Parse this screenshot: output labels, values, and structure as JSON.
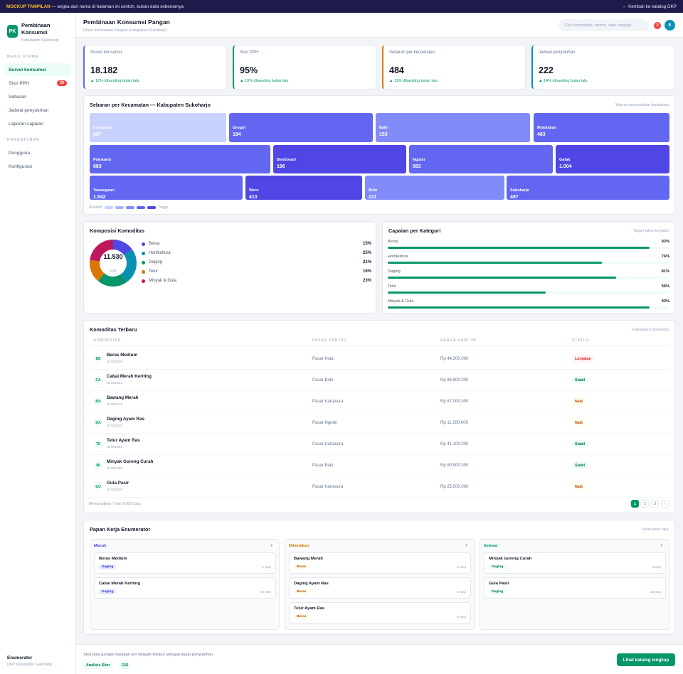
{
  "banner": {
    "tag": "MOCKUP TAMPILAN",
    "text": "— angka dan nama di halaman ini contoh, bukan data sebenarnya",
    "back": "← Kembali ke katalog DKP"
  },
  "sidebar": {
    "logo": "PK",
    "title": "Pembinaan Konsumsi",
    "subtitle": "Kabupaten Sukoharjo",
    "section_main": "MENU UTAMA",
    "items": [
      {
        "label": "Survei konsumsi"
      },
      {
        "label": "Skor PPH",
        "badge": "29"
      },
      {
        "label": "Sebaran"
      },
      {
        "label": "Jadwal penyuluhan"
      },
      {
        "label": "Laporan capaian"
      }
    ],
    "section_settings": "PENGATURAN",
    "settings": [
      {
        "label": "Pengguna"
      },
      {
        "label": "Konfigurasi"
      }
    ],
    "user_role": "Enumerator",
    "user_org": "DKP Kabupaten Sukoharjo"
  },
  "header": {
    "title": "Pembinaan Konsumsi Pangan",
    "subtitle": "Dinas Ketahanan Pangan Kabupaten Sukoharjo",
    "search_placeholder": "Cari komoditas, nomor, atau tanggal...",
    "notif_count": "2",
    "avatar": "E"
  },
  "kpis": [
    {
      "label": "Survei konsumsi",
      "value": "18.182",
      "trend": "▲ 12% dibanding bulan lalu",
      "accent": "#6366f1"
    },
    {
      "label": "Skor PPH",
      "value": "95%",
      "trend": "▲ 10% dibanding bulan lalu",
      "accent": "#059669"
    },
    {
      "label": "Sebaran per kecamatan",
      "value": "484",
      "trend": "▲ 11% dibanding bulan lalu",
      "accent": "#d97706"
    },
    {
      "label": "Jadwal penyuluhan",
      "value": "222",
      "trend": "▲ 14% dibanding bulan lalu",
      "accent": "#0891b2"
    }
  ],
  "map": {
    "title": "Sebaran per Kecamatan — Kabupaten Sukoharjo",
    "note": "Warna menunjukkan kepadatan",
    "legend_low": "Rendah",
    "legend_high": "Tinggi",
    "scale_colors": [
      "#c7d2fe",
      "#a5b4fc",
      "#818cf8",
      "#6366f1",
      "#4f46e5"
    ],
    "rows": [
      [
        {
          "name": "Kartasura",
          "value": "987",
          "level": 0
        },
        {
          "name": "Grogol",
          "value": "194",
          "level": 3
        },
        {
          "name": "Baki",
          "value": "153",
          "level": 2
        },
        {
          "name": "Mojolaban",
          "value": "483",
          "level": 3
        }
      ],
      [
        {
          "name": "Polokarto",
          "value": "883",
          "level": 3
        },
        {
          "name": "Bendosari",
          "value": "196",
          "level": 4
        },
        {
          "name": "Nguter",
          "value": "583",
          "level": 3
        },
        {
          "name": "Gatak",
          "value": "1.004",
          "level": 4
        }
      ],
      [
        {
          "name": "Tawangsari",
          "value": "1.542",
          "level": 3
        },
        {
          "name": "Weru",
          "value": "410",
          "level": 4
        },
        {
          "name": "Bulu",
          "value": "211",
          "level": 2
        },
        {
          "name": "Sukoharjo",
          "value": "497",
          "level": 3
        }
      ]
    ]
  },
  "composition": {
    "title": "Komposisi Komoditas",
    "total": "11.530",
    "total_label": "total",
    "items": [
      {
        "name": "Beras",
        "pct": "15%",
        "value": 15,
        "color": "#4f46e5"
      },
      {
        "name": "Hortikultura",
        "pct": "25%",
        "value": 25,
        "color": "#0891b2"
      },
      {
        "name": "Daging",
        "pct": "21%",
        "value": 21,
        "color": "#059669"
      },
      {
        "name": "Telur",
        "pct": "16%",
        "value": 16,
        "color": "#d97706"
      },
      {
        "name": "Minyak & Gula",
        "pct": "23%",
        "value": 23,
        "color": "#be185d"
      }
    ]
  },
  "achievement": {
    "title": "Capaian per Kategori",
    "note": "Target tahun berjalan",
    "items": [
      {
        "name": "Beras",
        "pct": "93%",
        "value": 0.93
      },
      {
        "name": "Hortikultura",
        "pct": "76%",
        "value": 0.76
      },
      {
        "name": "Daging",
        "pct": "81%",
        "value": 0.81
      },
      {
        "name": "Telur",
        "pct": "56%",
        "value": 0.56
      },
      {
        "name": "Minyak & Gula",
        "pct": "93%",
        "value": 0.93
      }
    ]
  },
  "table": {
    "title": "Komoditas Terbaru",
    "note": "Kabupaten Sukoharjo",
    "headers": [
      "KOMODITAS",
      "PASAR PANTAU",
      "HARGA HARI INI",
      "STATUS"
    ],
    "rows": [
      {
        "icon": "BE",
        "name": "Beras Medium",
        "id": "ID 001206",
        "market": "Pasar Kota",
        "price": "Rp 44.200.000",
        "status": "Lonjakan",
        "kind": "red"
      },
      {
        "icon": "CA",
        "name": "Cabai Merah Keriting",
        "id": "ID 001241",
        "market": "Pasar Baki",
        "price": "Rp 86.900.000",
        "status": "Stabil",
        "kind": "green"
      },
      {
        "icon": "BA",
        "name": "Bawang Merah",
        "id": "ID 001278",
        "market": "Pasar Kartasura",
        "price": "Rp 67.000.000",
        "status": "Naik",
        "kind": "amber"
      },
      {
        "icon": "DA",
        "name": "Daging Ayam Ras",
        "id": "ID 001315",
        "market": "Pasar Nguter",
        "price": "Rp 11.500.000",
        "status": "Naik",
        "kind": "amber"
      },
      {
        "icon": "TE",
        "name": "Telur Ayam Ras",
        "id": "ID 001352",
        "market": "Pasar Kartasura",
        "price": "Rp 41.100.000",
        "status": "Stabil",
        "kind": "green"
      },
      {
        "icon": "MI",
        "name": "Minyak Goreng Curah",
        "id": "ID 001389",
        "market": "Pasar Baki",
        "price": "Rp 89.900.000",
        "status": "Stabil",
        "kind": "green"
      },
      {
        "icon": "GU",
        "name": "Gula Pasir",
        "id": "ID 001426",
        "market": "Pasar Kartasura",
        "price": "Rp 25.500.000",
        "status": "Naik",
        "kind": "amber"
      }
    ],
    "footer": "Menampilkan 7 dari 8.059 data",
    "pages": [
      "1",
      "2",
      "3",
      "›"
    ]
  },
  "board": {
    "title": "Papan Kerja Enumerator",
    "note": "Seret antar lajur",
    "columns": [
      {
        "name": "Masuk",
        "count": "2",
        "color": "#4f46e5",
        "cards": [
          {
            "title": "Beras Medium",
            "tag": "Daging",
            "date": "1 Sep",
            "tag_kind": "blue"
          },
          {
            "title": "Cabai Merah Keriting",
            "tag": "Daging",
            "date": "22 Sep",
            "tag_kind": "blue"
          }
        ]
      },
      {
        "name": "Dikerjakan",
        "count": "3",
        "color": "#d97706",
        "cards": [
          {
            "title": "Bawang Merah",
            "tag": "Beras",
            "date": "5 Sep",
            "tag_kind": "amber"
          },
          {
            "title": "Daging Ayam Ras",
            "tag": "Beras",
            "date": "6 Sep",
            "tag_kind": "amber"
          },
          {
            "title": "Telur Ayam Ras",
            "tag": "Beras",
            "date": "6 Sep",
            "tag_kind": "amber"
          }
        ]
      },
      {
        "name": "Selesai",
        "count": "2",
        "color": "#059669",
        "cards": [
          {
            "title": "Minyak Goreng Curah",
            "tag": "Daging",
            "date": "4 Sep",
            "tag_kind": "green"
          },
          {
            "title": "Gula Pasir",
            "tag": "Daging",
            "date": "19 Sep",
            "tag_kind": "green"
          }
        ]
      }
    ]
  },
  "footer": {
    "description": "Skor pola pangan harapan per wilayah terukur sebagai dasar penyuluhan.",
    "chips": [
      "Analisis Skor",
      "GIS"
    ],
    "cta": "Lihat katalog lengkap"
  }
}
